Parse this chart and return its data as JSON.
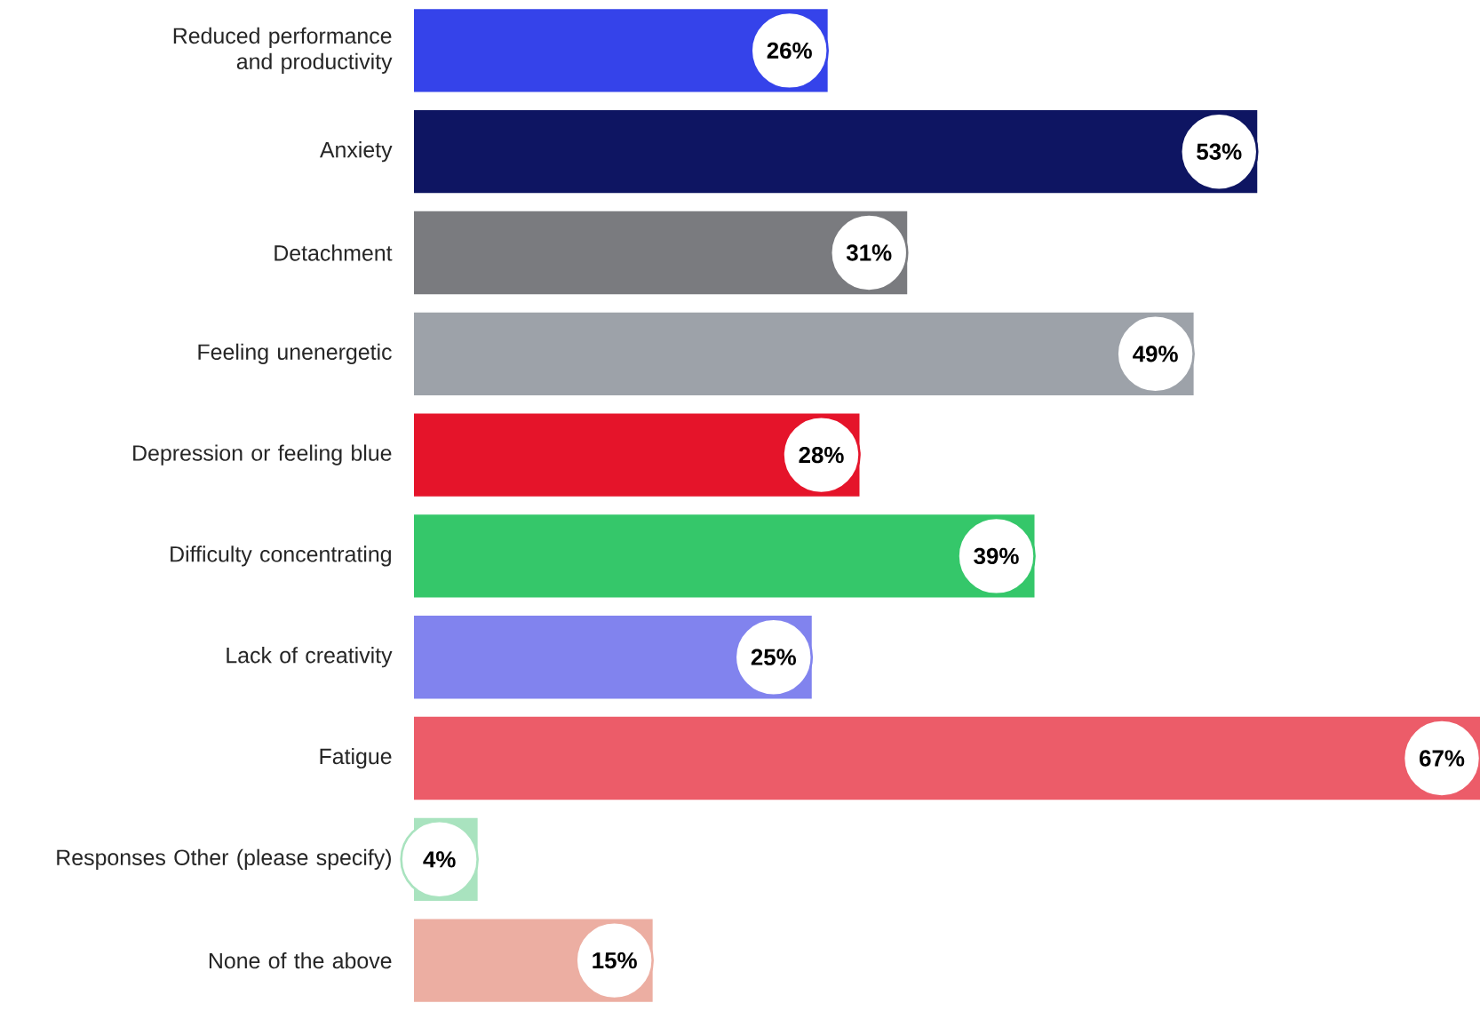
{
  "chart_data": {
    "type": "bar",
    "orientation": "horizontal",
    "categories": [
      "Reduced performance and productivity",
      "Anxiety",
      "Detachment",
      "Feeling unenergetic",
      "Depression or feeling blue",
      "Difficulty concentrating",
      "Lack of creativity",
      "Fatigue",
      "Responses Other (please specify)",
      "None of the above"
    ],
    "values": [
      26,
      53,
      31,
      49,
      28,
      39,
      25,
      67,
      4,
      15
    ],
    "value_labels": [
      "26%",
      "53%",
      "31%",
      "49%",
      "28%",
      "39%",
      "25%",
      "67%",
      "4%",
      "15%"
    ],
    "colors": [
      "#3543ea",
      "#0e1562",
      "#7a7b7f",
      "#9da2a9",
      "#e5142a",
      "#35c76a",
      "#8183ee",
      "#ec5c69",
      "#a9e3bf",
      "#ecaea2"
    ]
  }
}
